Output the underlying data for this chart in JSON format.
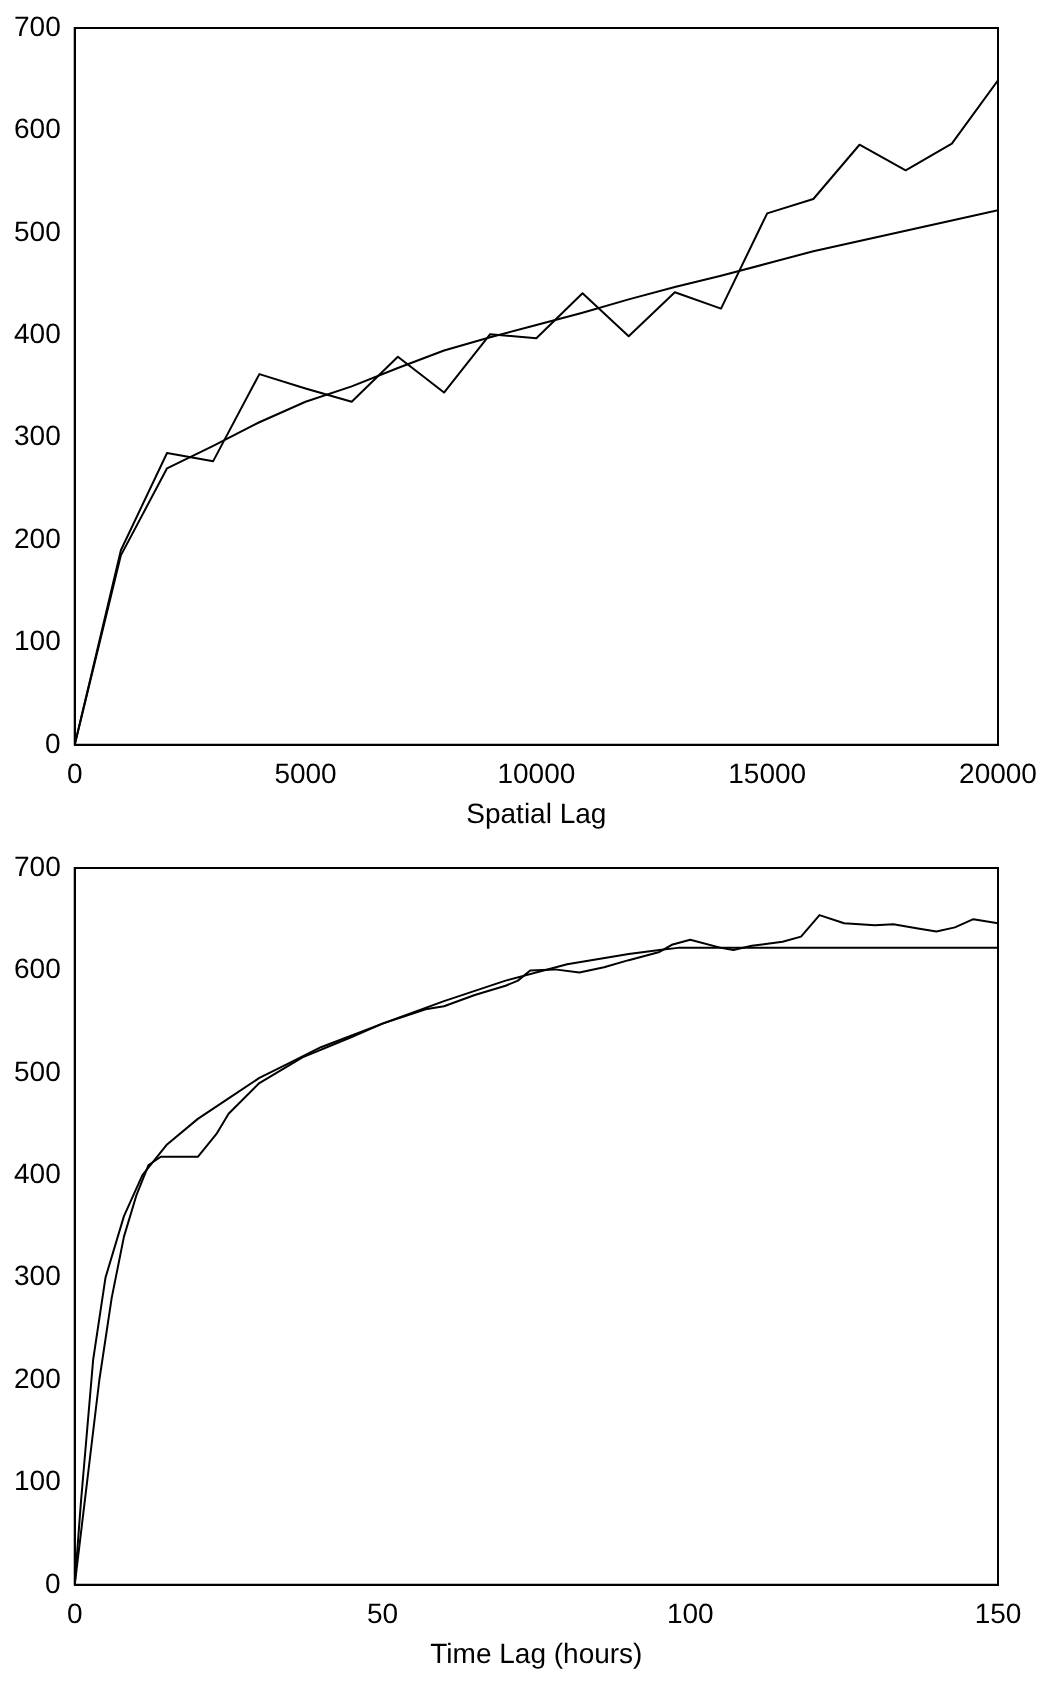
{
  "chart_data": [
    {
      "type": "line",
      "xlabel": "Spatial Lag",
      "xlim": [
        0,
        20000
      ],
      "xticks": [
        0,
        5000,
        10000,
        15000,
        20000
      ],
      "ylim": [
        0,
        700
      ],
      "yticks": [
        0,
        100,
        200,
        300,
        400,
        500,
        600,
        700
      ],
      "grid": false,
      "legend": false,
      "marker": "none",
      "line_style": "solid",
      "series": [
        {
          "color": "#000000",
          "x": [
            0,
            1000,
            2000,
            3000,
            4000,
            5000,
            6000,
            7000,
            8000,
            9000,
            10000,
            11000,
            12000,
            13000,
            14000,
            15000,
            16000,
            17000,
            18000,
            19000,
            20000
          ],
          "values": [
            0,
            190,
            285,
            277,
            362,
            348,
            335,
            379,
            344,
            401,
            397,
            441,
            399,
            442,
            426,
            519,
            533,
            586,
            561,
            587,
            649
          ]
        },
        {
          "color": "#000000",
          "x": [
            0,
            1000,
            2000,
            3000,
            4000,
            5000,
            6000,
            7000,
            8000,
            9000,
            10000,
            11000,
            12000,
            13000,
            14000,
            15000,
            16000,
            17000,
            18000,
            19000,
            20000
          ],
          "values": [
            0,
            185,
            270,
            292,
            315,
            335,
            350,
            368,
            385,
            398,
            410,
            422,
            435,
            447,
            458,
            470,
            482,
            492,
            502,
            512,
            522
          ]
        }
      ]
    },
    {
      "type": "line",
      "xlabel": "Time Lag (hours)",
      "xlim": [
        0,
        150
      ],
      "xticks": [
        0,
        50,
        100,
        150
      ],
      "ylim": [
        0,
        700
      ],
      "yticks": [
        0,
        100,
        200,
        300,
        400,
        500,
        600,
        700
      ],
      "grid": false,
      "legend": false,
      "marker": "none",
      "line_style": "solid",
      "series": [
        {
          "color": "#000000",
          "x": [
            0,
            2,
            4,
            6,
            8,
            10,
            12,
            14,
            18,
            20,
            23,
            25,
            30,
            37,
            45,
            50,
            57,
            60,
            65,
            70,
            72,
            74,
            78,
            82,
            86,
            90,
            95,
            97,
            100,
            105,
            107,
            110,
            115,
            118,
            121,
            125,
            130,
            133,
            137,
            140,
            143,
            146,
            150
          ],
          "values": [
            0,
            100,
            200,
            280,
            340,
            380,
            410,
            418,
            418,
            418,
            440,
            460,
            490,
            515,
            535,
            548,
            562,
            565,
            576,
            585,
            590,
            600,
            601,
            598,
            603,
            610,
            618,
            625,
            630,
            622,
            620,
            624,
            628,
            633,
            654,
            646,
            644,
            645,
            641,
            638,
            642,
            650,
            646
          ]
        },
        {
          "color": "#000000",
          "x": [
            0,
            1,
            3,
            5,
            8,
            11,
            15,
            20,
            25,
            30,
            35,
            40,
            50,
            60,
            70,
            80,
            90,
            95,
            98,
            150
          ],
          "values": [
            0,
            80,
            220,
            300,
            360,
            400,
            430,
            455,
            475,
            495,
            510,
            525,
            548,
            570,
            590,
            606,
            616,
            620,
            622,
            622
          ]
        }
      ]
    }
  ]
}
